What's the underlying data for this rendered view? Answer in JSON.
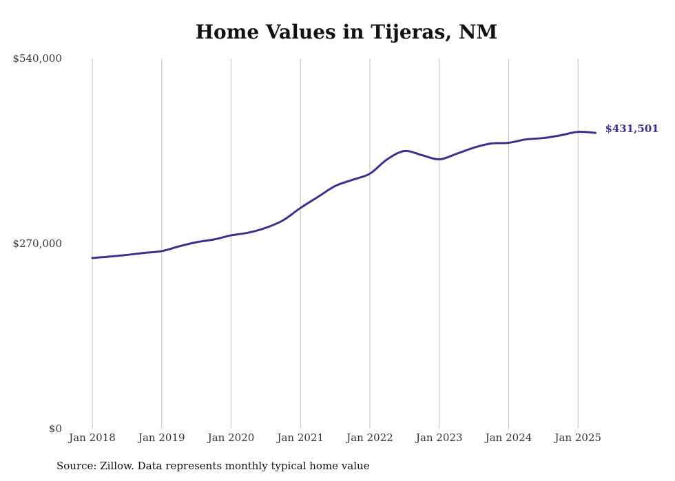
{
  "chart_data": {
    "type": "line",
    "title": "Home Values in Tijeras, NM",
    "xlabel": "",
    "ylabel": "",
    "ylim": [
      0,
      540000
    ],
    "y_ticks": [
      {
        "value": 0,
        "label": "$0"
      },
      {
        "value": 270000,
        "label": "$270,000"
      },
      {
        "value": 540000,
        "label": "$540,000"
      }
    ],
    "x_ticks": [
      {
        "value": "2018-01",
        "label": "Jan 2018"
      },
      {
        "value": "2019-01",
        "label": "Jan 2019"
      },
      {
        "value": "2020-01",
        "label": "Jan 2020"
      },
      {
        "value": "2021-01",
        "label": "Jan 2021"
      },
      {
        "value": "2022-01",
        "label": "Jan 2022"
      },
      {
        "value": "2023-01",
        "label": "Jan 2023"
      },
      {
        "value": "2024-01",
        "label": "Jan 2024"
      },
      {
        "value": "2025-01",
        "label": "Jan 2025"
      }
    ],
    "grid": {
      "vertical": true,
      "horizontal": false
    },
    "series": [
      {
        "color": "#3d2f8c",
        "points": [
          [
            "2018-01",
            249000
          ],
          [
            "2018-04",
            251000
          ],
          [
            "2018-07",
            253500
          ],
          [
            "2018-10",
            256500
          ],
          [
            "2019-01",
            259000
          ],
          [
            "2019-04",
            266000
          ],
          [
            "2019-07",
            272000
          ],
          [
            "2019-10",
            276000
          ],
          [
            "2020-01",
            282000
          ],
          [
            "2020-04",
            286000
          ],
          [
            "2020-07",
            293000
          ],
          [
            "2020-10",
            304000
          ],
          [
            "2021-01",
            322000
          ],
          [
            "2021-04",
            338000
          ],
          [
            "2021-07",
            354000
          ],
          [
            "2021-10",
            363000
          ],
          [
            "2022-01",
            372000
          ],
          [
            "2022-04",
            393000
          ],
          [
            "2022-07",
            405000
          ],
          [
            "2022-10",
            399000
          ],
          [
            "2023-01",
            393000
          ],
          [
            "2023-04",
            401000
          ],
          [
            "2023-07",
            410000
          ],
          [
            "2023-10",
            416000
          ],
          [
            "2024-01",
            417000
          ],
          [
            "2024-04",
            422000
          ],
          [
            "2024-07",
            424000
          ],
          [
            "2024-10",
            428000
          ],
          [
            "2025-01",
            433000
          ],
          [
            "2025-04",
            431501
          ]
        ]
      }
    ],
    "end_label": "$431,501"
  },
  "footer": {
    "source": "Source: Zillow. Data represents monthly typical home value"
  }
}
